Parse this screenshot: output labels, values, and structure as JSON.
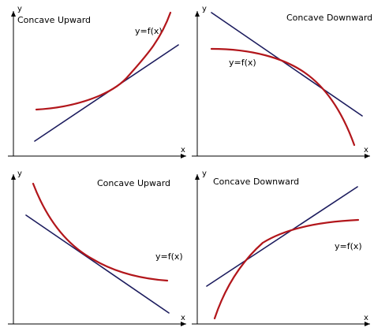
{
  "colors": {
    "curve": "#b2161b",
    "tangent": "#1c1c5e",
    "axis": "#000000",
    "background": "#ffffff"
  },
  "panels": [
    {
      "id": "top-left",
      "title": "Concave Upward",
      "function_label": "y=f(x)",
      "x_axis_label": "x",
      "y_axis_label": "y"
    },
    {
      "id": "top-right",
      "title": "Concave Downward",
      "function_label": "y=f(x)",
      "x_axis_label": "x",
      "y_axis_label": "y"
    },
    {
      "id": "bottom-left",
      "title": "Concave Upward",
      "function_label": "y=f(x)",
      "x_axis_label": "x",
      "y_axis_label": "y"
    },
    {
      "id": "bottom-right",
      "title": "Concave Downward",
      "function_label": "y=f(x)",
      "x_axis_label": "x",
      "y_axis_label": "y"
    }
  ]
}
